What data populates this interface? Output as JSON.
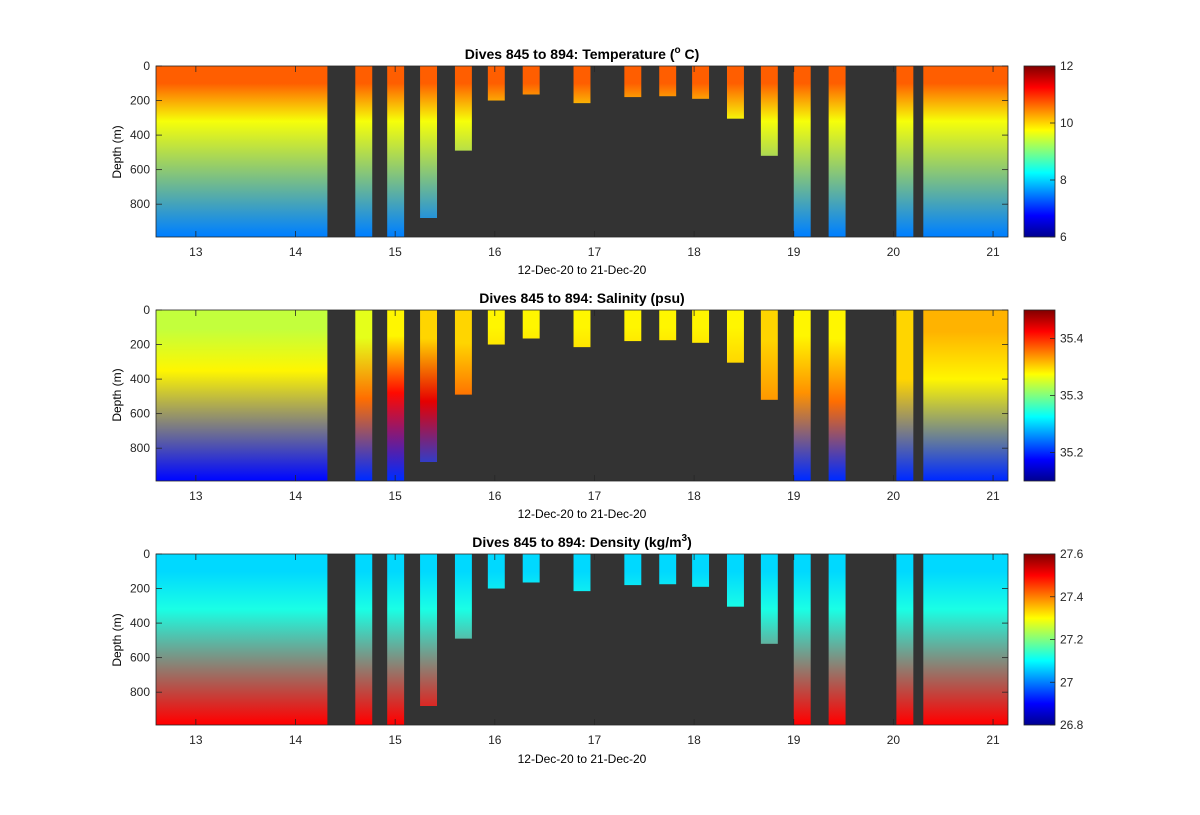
{
  "chart_data": [
    {
      "type": "heatmap",
      "title": "Dives 845 to 894: Temperature (",
      "title_super": "o",
      "title_tail": " C)",
      "ylabel": "Depth (m)",
      "xlabel": "12-Dec-20 to 21-Dec-20",
      "xlim": [
        12.6,
        21.15
      ],
      "ylim": [
        0,
        990
      ],
      "xticks": [
        13,
        14,
        15,
        16,
        17,
        18,
        19,
        20,
        21
      ],
      "yticks": [
        0,
        200,
        400,
        600,
        800
      ],
      "colorbar": {
        "min": 6,
        "max": 12,
        "ticks": [
          6,
          8,
          10,
          12
        ]
      },
      "background_color": "#333333",
      "profiles": [
        {
          "x": 12.6,
          "max_depth": 990,
          "surface": 10.7,
          "thermo_depth": 200,
          "mid": 9.7,
          "deep_depth": 980,
          "bottom": 7.5
        },
        {
          "x": 14.6,
          "max_depth": 990,
          "surface": 10.7,
          "thermo_depth": 200,
          "mid": 9.7,
          "deep_depth": 980,
          "bottom": 7.5
        },
        {
          "x": 14.92,
          "max_depth": 990,
          "surface": 10.7,
          "thermo_depth": 200,
          "mid": 9.7,
          "deep_depth": 980,
          "bottom": 7.5
        },
        {
          "x": 15.25,
          "max_depth": 880,
          "surface": 10.7,
          "thermo_depth": 200,
          "mid": 9.7,
          "deep_depth": 980,
          "bottom": 7.5
        },
        {
          "x": 15.6,
          "max_depth": 490,
          "surface": 10.7,
          "thermo_depth": 200,
          "mid": 9.7,
          "deep_depth": 980,
          "bottom": 7.5
        },
        {
          "x": 15.93,
          "max_depth": 200,
          "surface": 10.7,
          "thermo_depth": 200,
          "mid": 9.7,
          "deep_depth": 980,
          "bottom": 7.5
        },
        {
          "x": 16.28,
          "max_depth": 165,
          "surface": 10.7,
          "thermo_depth": 200,
          "mid": 9.7,
          "deep_depth": 980,
          "bottom": 7.5
        },
        {
          "x": 16.79,
          "max_depth": 215,
          "surface": 10.7,
          "thermo_depth": 200,
          "mid": 9.7,
          "deep_depth": 980,
          "bottom": 7.5
        },
        {
          "x": 17.3,
          "max_depth": 180,
          "surface": 10.7,
          "thermo_depth": 200,
          "mid": 9.7,
          "deep_depth": 980,
          "bottom": 7.5
        },
        {
          "x": 17.65,
          "max_depth": 175,
          "surface": 10.7,
          "thermo_depth": 200,
          "mid": 9.7,
          "deep_depth": 980,
          "bottom": 7.5
        },
        {
          "x": 17.98,
          "max_depth": 190,
          "surface": 10.7,
          "thermo_depth": 200,
          "mid": 9.7,
          "deep_depth": 980,
          "bottom": 7.5
        },
        {
          "x": 18.33,
          "max_depth": 305,
          "surface": 10.7,
          "thermo_depth": 200,
          "mid": 9.7,
          "deep_depth": 980,
          "bottom": 7.5
        },
        {
          "x": 18.67,
          "max_depth": 520,
          "surface": 10.7,
          "thermo_depth": 200,
          "mid": 9.7,
          "deep_depth": 980,
          "bottom": 7.5
        },
        {
          "x": 19.0,
          "max_depth": 990,
          "surface": 10.7,
          "thermo_depth": 200,
          "mid": 9.7,
          "deep_depth": 980,
          "bottom": 7.5
        },
        {
          "x": 19.35,
          "max_depth": 990,
          "surface": 10.7,
          "thermo_depth": 200,
          "mid": 9.7,
          "deep_depth": 980,
          "bottom": 7.5
        },
        {
          "x": 20.03,
          "max_depth": 990,
          "surface": 10.7,
          "thermo_depth": 200,
          "mid": 9.7,
          "deep_depth": 980,
          "bottom": 7.5
        },
        {
          "x": 20.3,
          "max_depth": 990,
          "surface": 10.7,
          "thermo_depth": 200,
          "mid": 9.7,
          "deep_depth": 980,
          "bottom": 7.5
        }
      ]
    },
    {
      "type": "heatmap",
      "title": "Dives 845 to 894: Salinity (psu)",
      "ylabel": "Depth (m)",
      "xlabel": "12-Dec-20 to 21-Dec-20",
      "xlim": [
        12.6,
        21.15
      ],
      "ylim": [
        0,
        990
      ],
      "xticks": [
        13,
        14,
        15,
        16,
        17,
        18,
        19,
        20,
        21
      ],
      "yticks": [
        0,
        200,
        400,
        600,
        800
      ],
      "colorbar": {
        "min": 35.15,
        "max": 35.45,
        "ticks": [
          35.2,
          35.3,
          35.4
        ]
      },
      "background_color": "#333333",
      "profiles": [
        {
          "x": 12.6,
          "max_depth": 990,
          "surface": 35.32,
          "thermo_depth": 220,
          "mid": 35.34,
          "deep_depth": 980,
          "bottom": 35.19
        },
        {
          "x": 14.6,
          "max_depth": 990,
          "surface": 35.33,
          "thermo_depth": 320,
          "mid": 35.38,
          "deep_depth": 980,
          "bottom": 35.2
        },
        {
          "x": 14.92,
          "max_depth": 990,
          "surface": 35.34,
          "thermo_depth": 300,
          "mid": 35.41,
          "deep_depth": 980,
          "bottom": 35.2
        },
        {
          "x": 15.25,
          "max_depth": 880,
          "surface": 35.35,
          "thermo_depth": 330,
          "mid": 35.42,
          "deep_depth": 980,
          "bottom": 35.21
        },
        {
          "x": 15.6,
          "max_depth": 490,
          "surface": 35.35,
          "thermo_depth": 380,
          "mid": 35.39,
          "deep_depth": 980,
          "bottom": 35.3
        },
        {
          "x": 15.93,
          "max_depth": 200,
          "surface": 35.34,
          "thermo_depth": 200,
          "mid": 35.35,
          "deep_depth": 980,
          "bottom": 35.3
        },
        {
          "x": 16.28,
          "max_depth": 165,
          "surface": 35.34,
          "thermo_depth": 200,
          "mid": 35.35,
          "deep_depth": 980,
          "bottom": 35.3
        },
        {
          "x": 16.79,
          "max_depth": 215,
          "surface": 35.34,
          "thermo_depth": 200,
          "mid": 35.35,
          "deep_depth": 980,
          "bottom": 35.3
        },
        {
          "x": 17.3,
          "max_depth": 180,
          "surface": 35.34,
          "thermo_depth": 200,
          "mid": 35.35,
          "deep_depth": 980,
          "bottom": 35.3
        },
        {
          "x": 17.65,
          "max_depth": 175,
          "surface": 35.34,
          "thermo_depth": 200,
          "mid": 35.35,
          "deep_depth": 980,
          "bottom": 35.3
        },
        {
          "x": 17.98,
          "max_depth": 190,
          "surface": 35.34,
          "thermo_depth": 200,
          "mid": 35.35,
          "deep_depth": 980,
          "bottom": 35.3
        },
        {
          "x": 18.33,
          "max_depth": 305,
          "surface": 35.34,
          "thermo_depth": 200,
          "mid": 35.35,
          "deep_depth": 980,
          "bottom": 35.3
        },
        {
          "x": 18.67,
          "max_depth": 520,
          "surface": 35.35,
          "thermo_depth": 350,
          "mid": 35.37,
          "deep_depth": 980,
          "bottom": 35.3
        },
        {
          "x": 19.0,
          "max_depth": 990,
          "surface": 35.34,
          "thermo_depth": 300,
          "mid": 35.37,
          "deep_depth": 980,
          "bottom": 35.2
        },
        {
          "x": 19.35,
          "max_depth": 990,
          "surface": 35.34,
          "thermo_depth": 330,
          "mid": 35.38,
          "deep_depth": 980,
          "bottom": 35.2
        },
        {
          "x": 20.03,
          "max_depth": 990,
          "surface": 35.35,
          "thermo_depth": 250,
          "mid": 35.35,
          "deep_depth": 980,
          "bottom": 35.2
        },
        {
          "x": 20.3,
          "max_depth": 990,
          "surface": 35.36,
          "thermo_depth": 250,
          "mid": 35.34,
          "deep_depth": 980,
          "bottom": 35.2
        }
      ]
    },
    {
      "type": "heatmap",
      "title": "Dives 845 to 894: Density (kg/m",
      "title_super": "3",
      "title_tail": ")",
      "ylabel": "Depth (m)",
      "xlabel": "12-Dec-20 to 21-Dec-20",
      "xlim": [
        12.6,
        21.15
      ],
      "ylim": [
        0,
        990
      ],
      "xticks": [
        13,
        14,
        15,
        16,
        17,
        18,
        19,
        20,
        21
      ],
      "yticks": [
        0,
        200,
        400,
        600,
        800
      ],
      "colorbar": {
        "min": 26.8,
        "max": 27.6,
        "ticks": [
          26.8,
          27,
          27.2,
          27.4,
          27.6
        ]
      },
      "background_color": "#333333",
      "profiles": [
        {
          "x": 12.6,
          "max_depth": 990,
          "surface": 27.07,
          "thermo_depth": 200,
          "mid": 27.12,
          "deep_depth": 980,
          "bottom": 27.5
        },
        {
          "x": 14.6,
          "max_depth": 990,
          "surface": 27.07,
          "thermo_depth": 200,
          "mid": 27.12,
          "deep_depth": 980,
          "bottom": 27.5
        },
        {
          "x": 14.92,
          "max_depth": 990,
          "surface": 27.07,
          "thermo_depth": 200,
          "mid": 27.12,
          "deep_depth": 980,
          "bottom": 27.5
        },
        {
          "x": 15.25,
          "max_depth": 880,
          "surface": 27.07,
          "thermo_depth": 200,
          "mid": 27.12,
          "deep_depth": 980,
          "bottom": 27.5
        },
        {
          "x": 15.6,
          "max_depth": 490,
          "surface": 27.07,
          "thermo_depth": 200,
          "mid": 27.12,
          "deep_depth": 980,
          "bottom": 27.5
        },
        {
          "x": 15.93,
          "max_depth": 200,
          "surface": 27.07,
          "thermo_depth": 200,
          "mid": 27.12,
          "deep_depth": 980,
          "bottom": 27.5
        },
        {
          "x": 16.28,
          "max_depth": 165,
          "surface": 27.07,
          "thermo_depth": 200,
          "mid": 27.12,
          "deep_depth": 980,
          "bottom": 27.5
        },
        {
          "x": 16.79,
          "max_depth": 215,
          "surface": 27.07,
          "thermo_depth": 200,
          "mid": 27.12,
          "deep_depth": 980,
          "bottom": 27.5
        },
        {
          "x": 17.3,
          "max_depth": 180,
          "surface": 27.07,
          "thermo_depth": 200,
          "mid": 27.12,
          "deep_depth": 980,
          "bottom": 27.5
        },
        {
          "x": 17.65,
          "max_depth": 175,
          "surface": 27.07,
          "thermo_depth": 200,
          "mid": 27.12,
          "deep_depth": 980,
          "bottom": 27.5
        },
        {
          "x": 17.98,
          "max_depth": 190,
          "surface": 27.07,
          "thermo_depth": 200,
          "mid": 27.12,
          "deep_depth": 980,
          "bottom": 27.5
        },
        {
          "x": 18.33,
          "max_depth": 305,
          "surface": 27.07,
          "thermo_depth": 200,
          "mid": 27.12,
          "deep_depth": 980,
          "bottom": 27.5
        },
        {
          "x": 18.67,
          "max_depth": 520,
          "surface": 27.07,
          "thermo_depth": 200,
          "mid": 27.12,
          "deep_depth": 980,
          "bottom": 27.5
        },
        {
          "x": 19.0,
          "max_depth": 990,
          "surface": 27.07,
          "thermo_depth": 200,
          "mid": 27.12,
          "deep_depth": 980,
          "bottom": 27.5
        },
        {
          "x": 19.35,
          "max_depth": 990,
          "surface": 27.07,
          "thermo_depth": 200,
          "mid": 27.12,
          "deep_depth": 980,
          "bottom": 27.5
        },
        {
          "x": 20.03,
          "max_depth": 990,
          "surface": 27.07,
          "thermo_depth": 200,
          "mid": 27.12,
          "deep_depth": 980,
          "bottom": 27.5
        },
        {
          "x": 20.3,
          "max_depth": 990,
          "surface": 27.07,
          "thermo_depth": 200,
          "mid": 27.12,
          "deep_depth": 980,
          "bottom": 27.5
        }
      ]
    }
  ]
}
